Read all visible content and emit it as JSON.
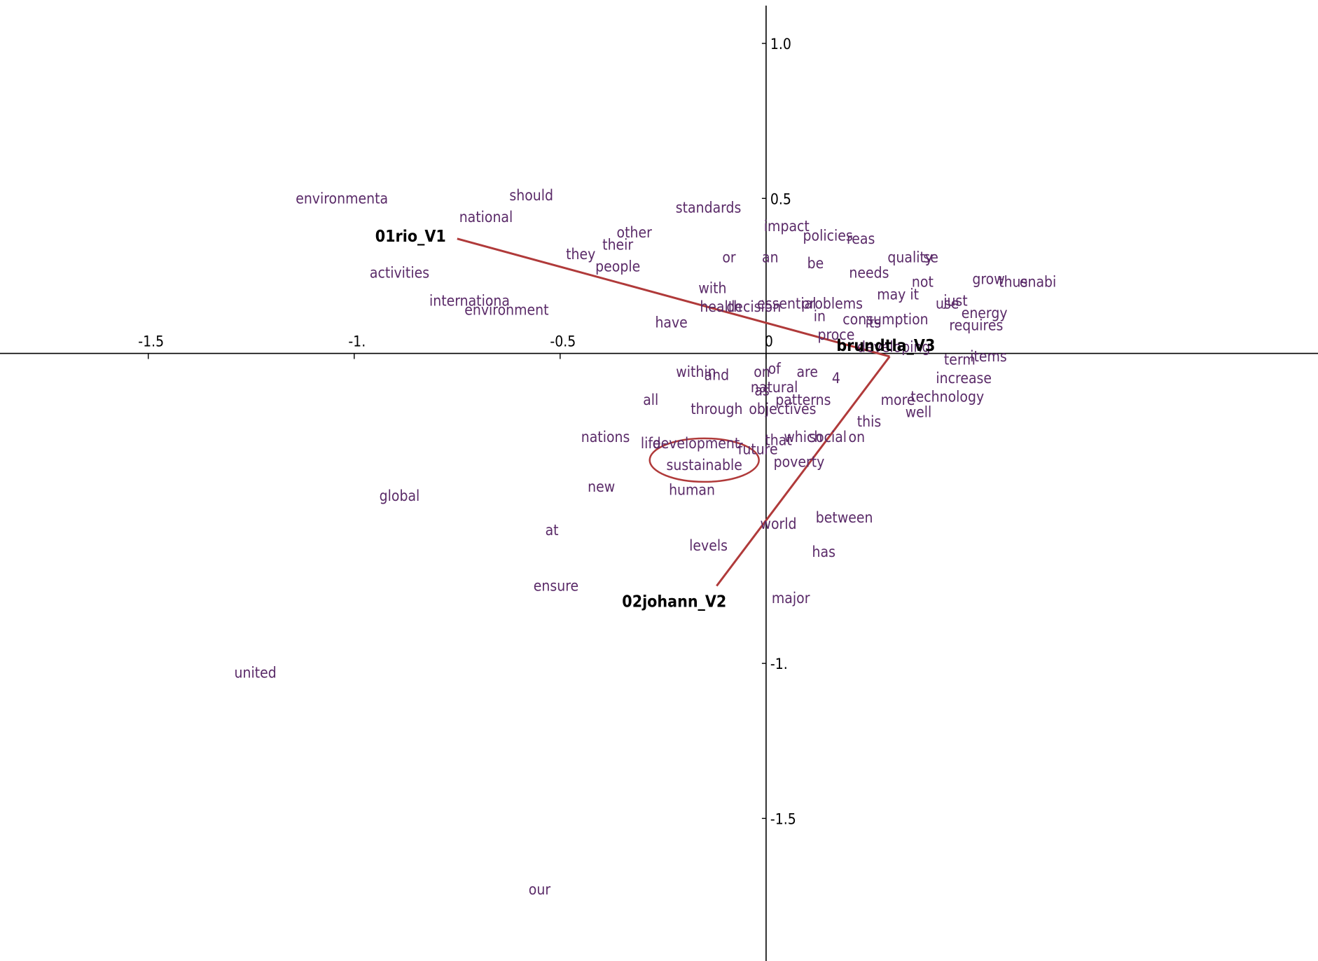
{
  "chart_data": {
    "type": "scatter",
    "title": "",
    "xlabel": "",
    "ylabel": "",
    "xlim": [
      -1.86,
      1.34
    ],
    "ylim": [
      -1.96,
      1.14
    ],
    "grid": false,
    "x_ticks": [
      {
        "value": -1.5,
        "label": "-1.5"
      },
      {
        "value": -1.0,
        "label": "-1."
      },
      {
        "value": -0.5,
        "label": "-0.5"
      },
      {
        "value": 0,
        "label": "0"
      }
    ],
    "y_ticks": [
      {
        "value": 1.0,
        "label": "1.0"
      },
      {
        "value": 0.5,
        "label": "0.5"
      },
      {
        "value": -1.0,
        "label": "-1."
      },
      {
        "value": -1.5,
        "label": "-1.5"
      }
    ],
    "colors": {
      "words": "#5a2a68",
      "documents": "#000000",
      "lines": "#b03a3a",
      "axes": "#000000"
    },
    "documents": [
      {
        "label": "01rio_V1",
        "x": -0.75,
        "y": 0.37
      },
      {
        "label": "brundtla_V3",
        "x": 0.3,
        "y": -0.01
      },
      {
        "label": "02johann_V2",
        "x": -0.12,
        "y": -0.75
      }
    ],
    "lines": [
      {
        "from": "01rio_V1",
        "to": "brundtla_V3"
      },
      {
        "from": "02johann_V2",
        "to": "brundtla_V3"
      }
    ],
    "highlight": {
      "label": "sustainable",
      "x": -0.15,
      "y": -0.36
    },
    "words": [
      {
        "label": "environmenta",
        "x": -1.03,
        "y": 0.5
      },
      {
        "label": "should",
        "x": -0.57,
        "y": 0.51
      },
      {
        "label": "national",
        "x": -0.68,
        "y": 0.44
      },
      {
        "label": "standards",
        "x": -0.14,
        "y": 0.47
      },
      {
        "label": "impact",
        "x": 0.05,
        "y": 0.41
      },
      {
        "label": "policies",
        "x": 0.15,
        "y": 0.38
      },
      {
        "label": "reas",
        "x": 0.23,
        "y": 0.37
      },
      {
        "label": "other",
        "x": -0.32,
        "y": 0.39
      },
      {
        "label": "their",
        "x": -0.36,
        "y": 0.35
      },
      {
        "label": "they",
        "x": -0.45,
        "y": 0.32
      },
      {
        "label": "people",
        "x": -0.36,
        "y": 0.28
      },
      {
        "label": "or",
        "x": -0.09,
        "y": 0.31
      },
      {
        "label": "an",
        "x": 0.01,
        "y": 0.31
      },
      {
        "label": "be",
        "x": 0.12,
        "y": 0.29
      },
      {
        "label": "quality",
        "x": 0.35,
        "y": 0.31
      },
      {
        "label": "se",
        "x": 0.4,
        "y": 0.31
      },
      {
        "label": "needs",
        "x": 0.25,
        "y": 0.26
      },
      {
        "label": "not",
        "x": 0.38,
        "y": 0.23
      },
      {
        "label": "grow",
        "x": 0.54,
        "y": 0.24
      },
      {
        "label": "thus",
        "x": 0.6,
        "y": 0.23
      },
      {
        "label": "enabi",
        "x": 0.66,
        "y": 0.23
      },
      {
        "label": "activities",
        "x": -0.89,
        "y": 0.26
      },
      {
        "label": "with",
        "x": -0.13,
        "y": 0.21
      },
      {
        "label": "may it",
        "x": 0.32,
        "y": 0.19
      },
      {
        "label": "use",
        "x": 0.44,
        "y": 0.16
      },
      {
        "label": "just",
        "x": 0.46,
        "y": 0.17
      },
      {
        "label": "internationa",
        "x": -0.72,
        "y": 0.17
      },
      {
        "label": "environment",
        "x": -0.63,
        "y": 0.14
      },
      {
        "label": "health",
        "x": -0.11,
        "y": 0.15
      },
      {
        "label": "decision",
        "x": -0.03,
        "y": 0.15
      },
      {
        "label": "essential",
        "x": 0.05,
        "y": 0.16
      },
      {
        "label": "problems",
        "x": 0.16,
        "y": 0.16
      },
      {
        "label": "in",
        "x": 0.13,
        "y": 0.12
      },
      {
        "label": "energy",
        "x": 0.53,
        "y": 0.13
      },
      {
        "label": "have",
        "x": -0.23,
        "y": 0.1
      },
      {
        "label": "its",
        "x": 0.26,
        "y": 0.1
      },
      {
        "label": "consumption",
        "x": 0.29,
        "y": 0.11
      },
      {
        "label": "requires",
        "x": 0.51,
        "y": 0.09
      },
      {
        "label": "proce",
        "x": 0.17,
        "y": 0.06
      },
      {
        "label": "developing",
        "x": 0.31,
        "y": 0.02
      },
      {
        "label": "term",
        "x": 0.47,
        "y": -0.02
      },
      {
        "label": "items",
        "x": 0.54,
        "y": -0.01
      },
      {
        "label": "within",
        "x": -0.17,
        "y": -0.06
      },
      {
        "label": "and",
        "x": -0.12,
        "y": -0.07
      },
      {
        "label": "on",
        "x": -0.01,
        "y": -0.06
      },
      {
        "label": "of",
        "x": 0.02,
        "y": -0.05
      },
      {
        "label": "are",
        "x": 0.1,
        "y": -0.06
      },
      {
        "label": "4",
        "x": 0.17,
        "y": -0.08
      },
      {
        "label": "increase",
        "x": 0.48,
        "y": -0.08
      },
      {
        "label": "as",
        "x": -0.01,
        "y": -0.12
      },
      {
        "label": "natural",
        "x": 0.02,
        "y": -0.11
      },
      {
        "label": "all",
        "x": -0.28,
        "y": -0.15
      },
      {
        "label": "patterns",
        "x": 0.09,
        "y": -0.15
      },
      {
        "label": "more",
        "x": 0.32,
        "y": -0.15
      },
      {
        "label": "technology",
        "x": 0.44,
        "y": -0.14
      },
      {
        "label": "through",
        "x": -0.12,
        "y": -0.18
      },
      {
        "label": "objectives",
        "x": 0.04,
        "y": -0.18
      },
      {
        "label": "well",
        "x": 0.37,
        "y": -0.19
      },
      {
        "label": "this",
        "x": 0.25,
        "y": -0.22
      },
      {
        "label": "nations",
        "x": -0.39,
        "y": -0.27
      },
      {
        "label": "life",
        "x": -0.28,
        "y": -0.29
      },
      {
        "label": "development",
        "x": -0.17,
        "y": -0.29
      },
      {
        "label": "that",
        "x": 0.03,
        "y": -0.28
      },
      {
        "label": "which",
        "x": 0.09,
        "y": -0.27
      },
      {
        "label": "social",
        "x": 0.15,
        "y": -0.27
      },
      {
        "label": "on",
        "x": 0.22,
        "y": -0.27
      },
      {
        "label": "future",
        "x": -0.02,
        "y": -0.31
      },
      {
        "label": "poverty",
        "x": 0.08,
        "y": -0.35
      },
      {
        "label": "new",
        "x": -0.4,
        "y": -0.43
      },
      {
        "label": "human",
        "x": -0.18,
        "y": -0.44
      },
      {
        "label": "global",
        "x": -0.89,
        "y": -0.46
      },
      {
        "label": "world",
        "x": 0.03,
        "y": -0.55
      },
      {
        "label": "between",
        "x": 0.19,
        "y": -0.53
      },
      {
        "label": "at",
        "x": -0.52,
        "y": -0.57
      },
      {
        "label": "levels",
        "x": -0.14,
        "y": -0.62
      },
      {
        "label": "has",
        "x": 0.14,
        "y": -0.64
      },
      {
        "label": "ensure",
        "x": -0.51,
        "y": -0.75
      },
      {
        "label": "major",
        "x": 0.06,
        "y": -0.79
      },
      {
        "label": "united",
        "x": -1.24,
        "y": -1.03
      },
      {
        "label": "our",
        "x": -0.55,
        "y": -1.73
      }
    ]
  }
}
